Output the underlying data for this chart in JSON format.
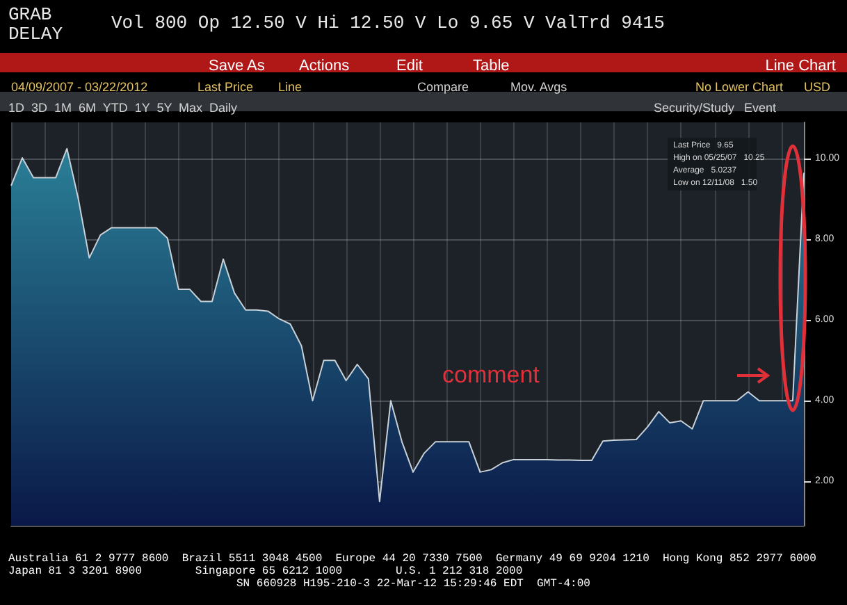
{
  "chart_data": {
    "type": "area",
    "categories": [
      null,
      null,
      null,
      null,
      null,
      null,
      null,
      null,
      null,
      null,
      null,
      null,
      null,
      null,
      null,
      null,
      null,
      null,
      null,
      null,
      null,
      null,
      null,
      null,
      null,
      null,
      null,
      null,
      null,
      null,
      null,
      null,
      null,
      null,
      null,
      null,
      null,
      null,
      null,
      null,
      null,
      null,
      null,
      null,
      null,
      null,
      null,
      null,
      null,
      null,
      null,
      null,
      null,
      null,
      null,
      null,
      null,
      null,
      null,
      null,
      null,
      null,
      null,
      null,
      null,
      null,
      null,
      null,
      null,
      null,
      null,
      null
    ],
    "series": [
      {
        "color": "#2a7f96",
        "values": [
          9.33,
          10.02,
          9.53,
          9.53,
          9.53,
          10.25,
          9.03,
          7.54,
          8.11,
          8.29,
          8.29,
          8.29,
          8.29,
          8.29,
          8.03,
          6.76,
          6.76,
          6.46,
          6.46,
          7.51,
          6.67,
          6.25,
          6.25,
          6.22,
          6.03,
          5.9,
          5.36,
          4.0,
          5.0,
          5.0,
          4.5,
          4.9,
          4.54,
          1.5,
          4.0,
          2.98,
          2.23,
          2.7,
          2.98,
          2.98,
          2.98,
          2.98,
          2.23,
          2.29,
          2.46,
          2.54,
          2.54,
          2.54,
          2.54,
          2.53,
          2.53,
          2.52,
          2.52,
          3.0,
          3.02,
          3.03,
          3.04,
          3.35,
          3.73,
          3.45,
          3.5,
          3.3,
          4.0,
          4.0,
          4.0,
          4.0,
          4.22,
          4.0,
          4.0,
          4.0,
          4.0,
          9.65
        ]
      }
    ],
    "ylim": [
      0.9,
      10.9
    ],
    "yticks": [
      {
        "value": 2,
        "label": "2.00"
      },
      {
        "value": 4,
        "label": "4.00"
      },
      {
        "value": 6,
        "label": "6.00"
      },
      {
        "value": 8,
        "label": "8.00"
      },
      {
        "value": 10,
        "label": "10.00"
      }
    ],
    "grid": true,
    "marker": "none",
    "annotations": [
      "GRAB",
      "DELAY",
      "Vol 800 Op 12.50 V Hi 12.50 V Lo 9.65 V ValTrd 9415",
      "Save As",
      "Actions",
      "Edit",
      "Table",
      "Line Chart",
      "04/09/2007 - 03/22/2012",
      "Last Price",
      "Line",
      "Compare",
      "Mov. Avgs",
      "No Lower Chart",
      "USD",
      "1D  3D  1M  6M  YTD  1Y  5Y  Max  Daily",
      "Security/Study",
      "Event",
      "Last Price   9.65",
      "High on 05/25/07   10.25",
      "Average   5.0237",
      "Low on 12/11/08   1.50",
      "comment",
      "Australia 61 2 9777 8600  Brazil 5511 3048 4500  Europe 44 20 7330 7500  Germany 49 69 9204 1210  Hong Kong 852 2977 6000",
      "Japan 81 3 3201 8900        Singapore 65 6212 1000        U.S. 1 212 318 2000",
      "SN 660928 H195-210-3 22-Mar-12 15:29:46 EDT  GMT-4:00"
    ]
  }
}
